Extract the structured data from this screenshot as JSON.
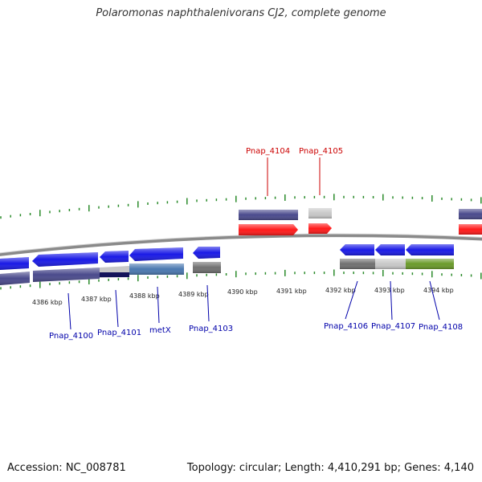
{
  "title": "Polaromonas naphthalenivorans CJ2, complete genome",
  "footer": {
    "accession": "Accession: NC_008781",
    "topology": "Topology: circular; Length: 4,410,291 bp; Genes: 4,140"
  },
  "colors": {
    "backbone": "#8a8a8a",
    "tick": "#2a8a2a",
    "forward_label": "#cc0000",
    "reverse_label": "#0000aa",
    "gene_blue": "#1a1ae6",
    "gene_red": "#ff1a1a",
    "gene_navy": "#4a4a8c",
    "gene_grey": "#707070",
    "gene_lightgrey": "#c8c8c8",
    "gene_steel": "#4a78b0",
    "gene_olive": "#6a9a2a"
  },
  "scale_labels": [
    "4386 kbp",
    "4387 kbp",
    "4388 kbp",
    "4389 kbp",
    "4390 kbp",
    "4391 kbp",
    "4392 kbp",
    "4393 kbp",
    "4394 kbp"
  ],
  "forward_genes": [
    {
      "label": "Pnap_4104"
    },
    {
      "label": "Pnap_4105"
    }
  ],
  "reverse_genes": [
    {
      "label": "Pnap_4100"
    },
    {
      "label": "Pnap_4101"
    },
    {
      "label": "metX"
    },
    {
      "label": "Pnap_4103"
    },
    {
      "label": "Pnap_4106"
    },
    {
      "label": "Pnap_4107"
    },
    {
      "label": "Pnap_4108"
    }
  ]
}
